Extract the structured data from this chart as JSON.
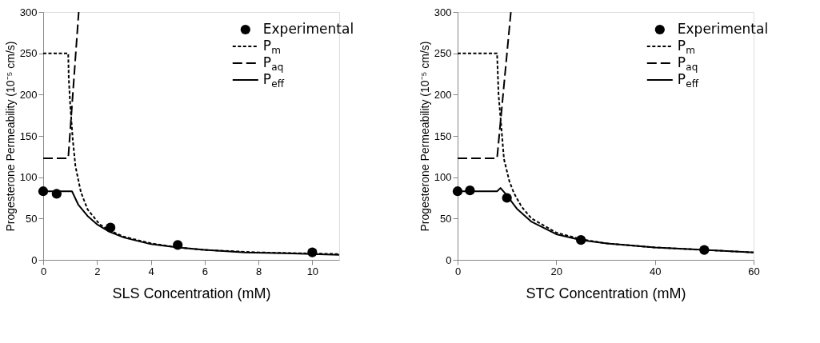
{
  "chart_data": [
    {
      "type": "line",
      "xlabel": "SLS Concentration (mM)",
      "ylabel": "Progesterone Permeability (10⁻⁵ cm/s)",
      "xlim": [
        0,
        11
      ],
      "xticks": [
        0,
        2,
        4,
        6,
        8,
        10
      ],
      "ylim": [
        0,
        300
      ],
      "yticks": [
        0,
        50,
        100,
        150,
        200,
        250,
        300
      ],
      "grid": false,
      "legend": "top right",
      "series": [
        {
          "name": "Experimental",
          "type": "scatter",
          "marker": "circle",
          "color": "#000000",
          "x": [
            0,
            0.5,
            2.5,
            5,
            10
          ],
          "values": [
            83,
            80,
            39,
            18,
            9
          ]
        },
        {
          "name": "P$_{m}$",
          "line_style": "dotted",
          "color": "#000000",
          "x": [
            0,
            0.93,
            0.95,
            1.0,
            1.1,
            1.2,
            1.4,
            1.65,
            2.1,
            2.5,
            3,
            4,
            5,
            6,
            8,
            11
          ],
          "values": [
            250,
            250,
            220,
            190,
            145,
            113,
            82,
            61,
            43,
            35,
            28,
            20,
            15,
            12,
            9,
            7
          ]
        },
        {
          "name": "P$_{aq}$",
          "line_style": "dashed",
          "color": "#000000",
          "x": [
            0,
            0.93,
            1.32
          ],
          "values": [
            123,
            123,
            300
          ]
        },
        {
          "name": "P$_{eff}$",
          "line_style": "solid",
          "color": "#000000",
          "x": [
            0,
            1.07,
            1.3,
            1.65,
            2,
            2.46,
            3,
            4,
            5,
            6,
            7.5,
            9,
            11
          ],
          "values": [
            83,
            83,
            67,
            53,
            43,
            34,
            27,
            19,
            15,
            12,
            9,
            8,
            6
          ]
        }
      ]
    },
    {
      "type": "line",
      "xlabel": "STC Concentration (mM)",
      "ylabel": "Progesterone Permeability (10⁻⁵ cm/s)",
      "xlim": [
        0,
        60
      ],
      "xticks": [
        0,
        20,
        40,
        60
      ],
      "ylim": [
        0,
        300
      ],
      "yticks": [
        0,
        50,
        100,
        150,
        200,
        250,
        300
      ],
      "grid": false,
      "legend": "top right",
      "series": [
        {
          "name": "Experimental",
          "type": "scatter",
          "marker": "circle",
          "color": "#000000",
          "x": [
            0,
            2.5,
            10,
            25,
            50
          ],
          "values": [
            83,
            84,
            75,
            24,
            12
          ]
        },
        {
          "name": "P$_{m}$",
          "line_style": "dotted",
          "color": "#000000",
          "x": [
            0,
            8,
            8.3,
            8.8,
            9.4,
            10.5,
            11.4,
            13,
            15,
            20,
            25,
            30,
            40,
            50,
            60
          ],
          "values": [
            250,
            250,
            200,
            165,
            122,
            95,
            81,
            64,
            50,
            33,
            25,
            20,
            15,
            12,
            9
          ]
        },
        {
          "name": "P$_{aq}$",
          "line_style": "dashed",
          "color": "#000000",
          "x": [
            0,
            8,
            10.8
          ],
          "values": [
            123,
            123,
            300
          ]
        },
        {
          "name": "P$_{eff}$",
          "line_style": "solid",
          "color": "#000000",
          "x": [
            0,
            8,
            8.7,
            10,
            12,
            15,
            20,
            25,
            30,
            40,
            50,
            60
          ],
          "values": [
            83,
            83,
            87,
            78,
            62,
            46,
            31,
            24,
            20,
            15,
            12,
            9
          ]
        }
      ]
    }
  ]
}
